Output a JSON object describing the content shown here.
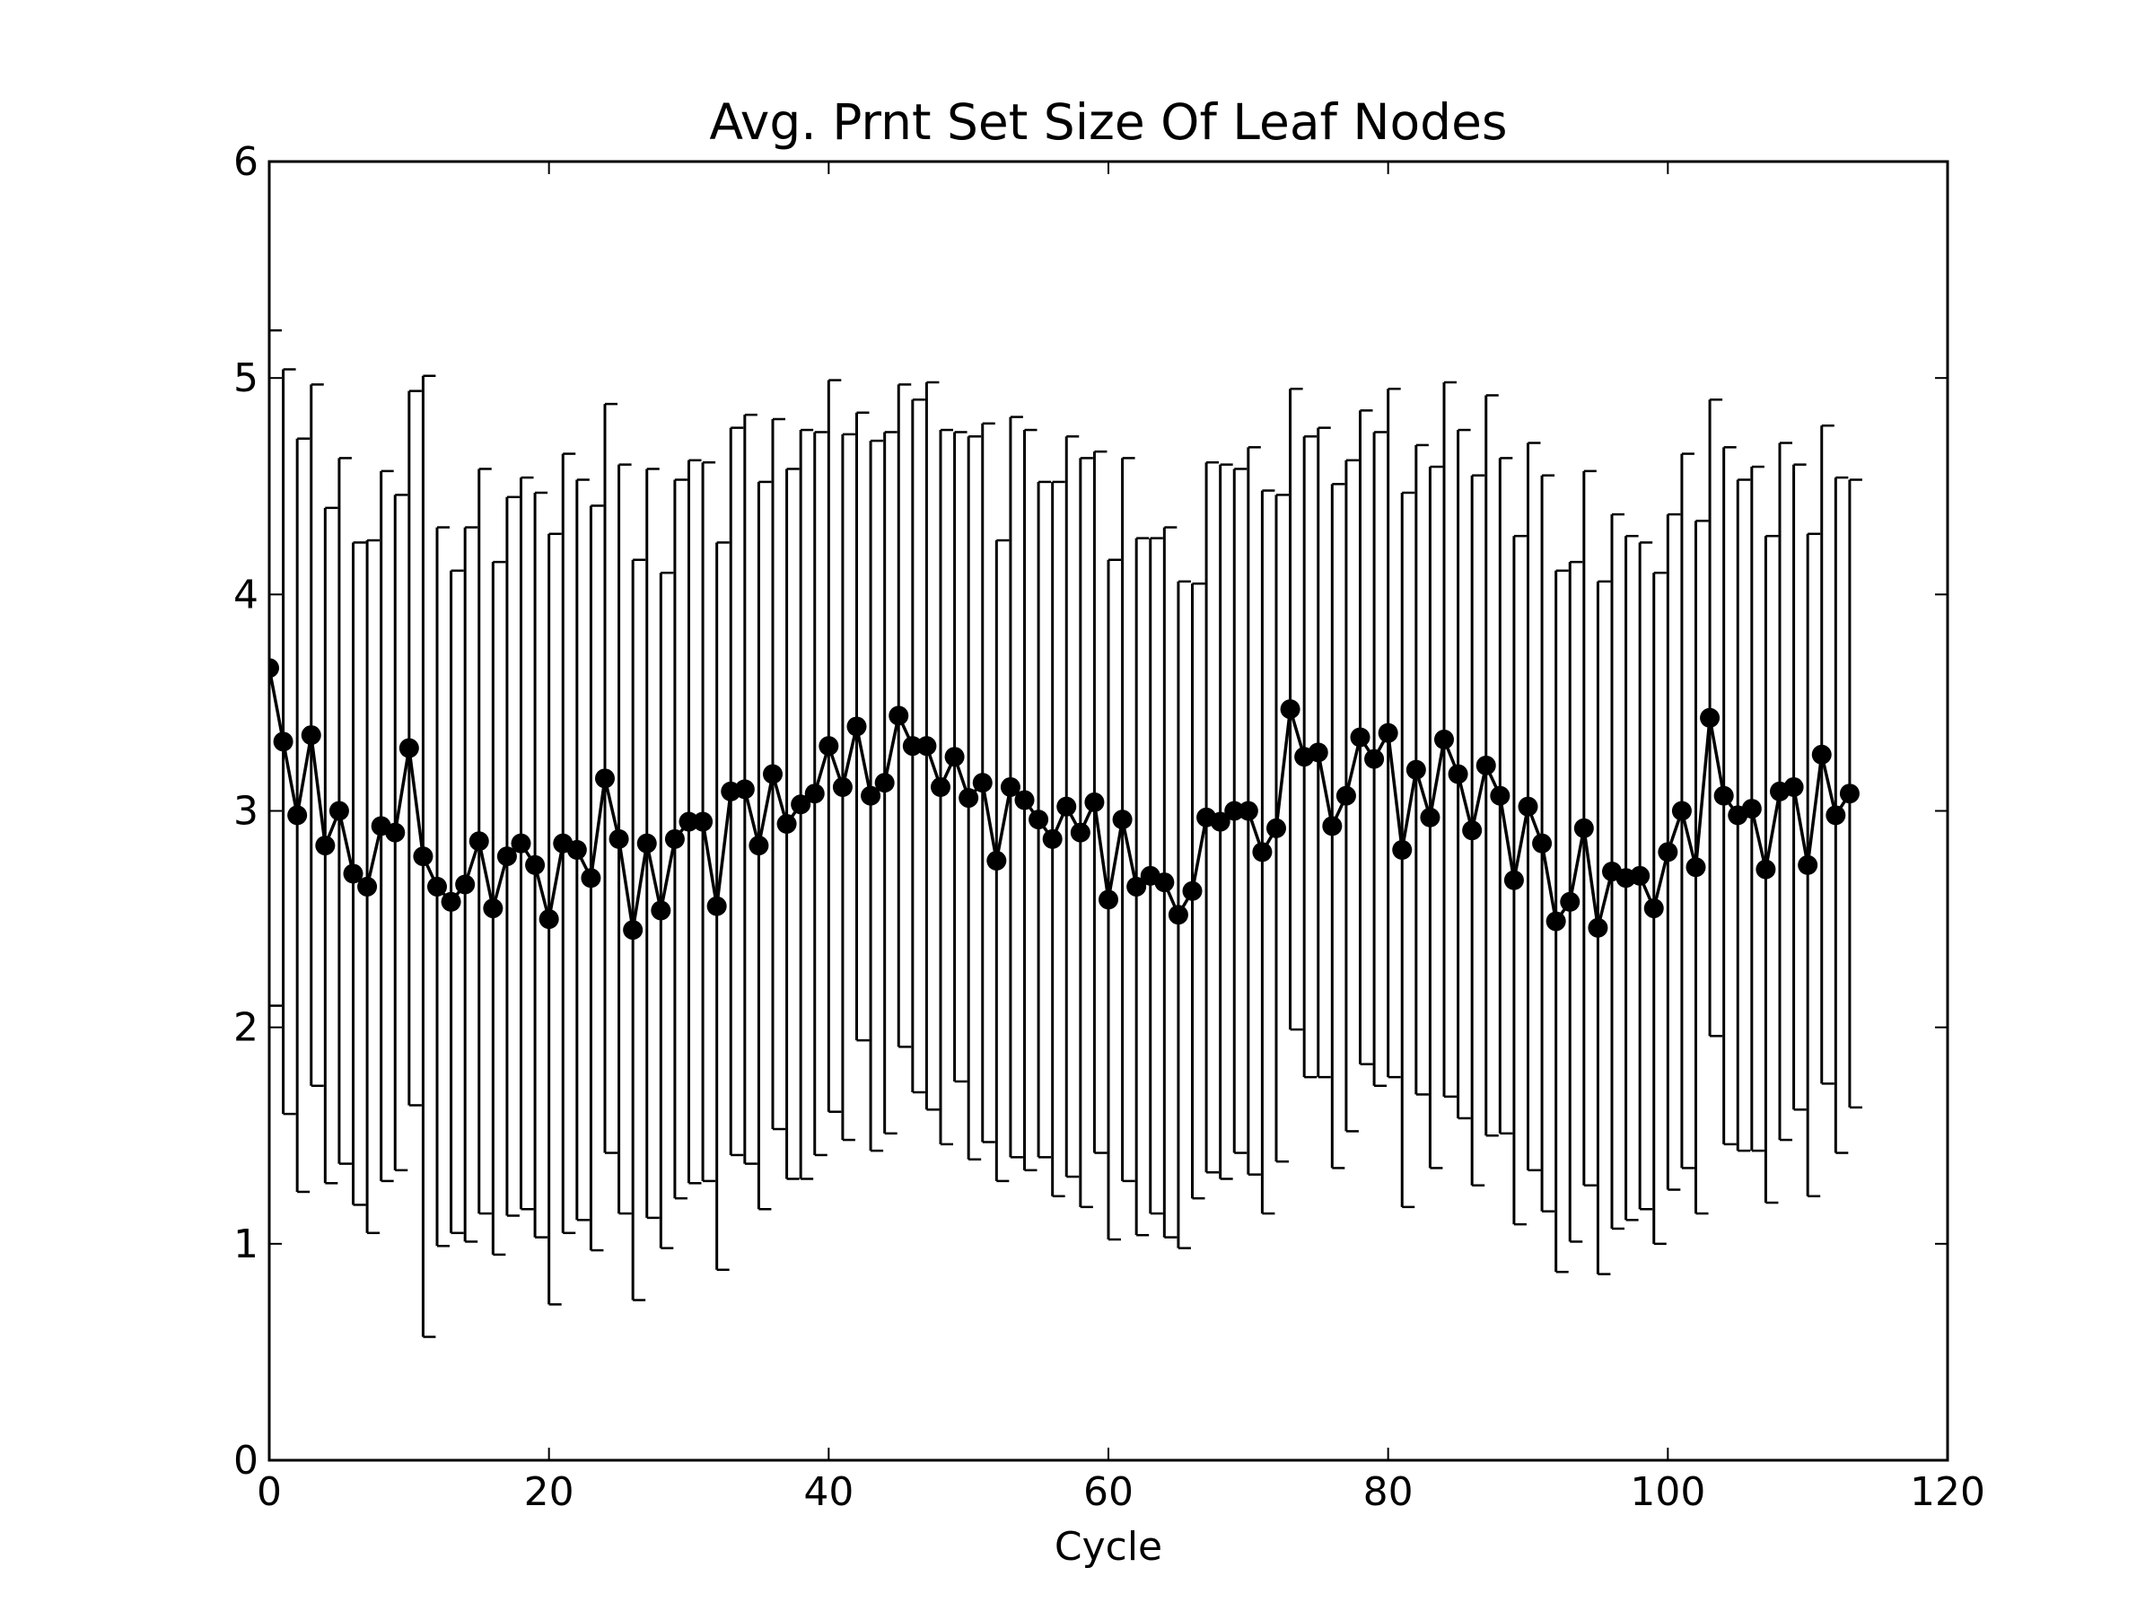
{
  "chart_data": {
    "type": "line",
    "title": "Avg. Prnt Set Size Of Leaf Nodes",
    "xlabel": "Cycle",
    "ylabel": "",
    "xlim": [
      0,
      120
    ],
    "ylim": [
      0,
      6
    ],
    "xticks": [
      0,
      20,
      40,
      60,
      80,
      100,
      120
    ],
    "yticks": [
      0,
      1,
      2,
      3,
      4,
      5,
      6
    ],
    "xtick_labels": [
      "0",
      "20",
      "40",
      "60",
      "80",
      "100",
      "120"
    ],
    "ytick_labels": [
      "0",
      "1",
      "2",
      "3",
      "4",
      "5",
      "6"
    ],
    "grid": false,
    "legend": "none",
    "line_color": "#000000",
    "marker": "filled-circle",
    "error_bars": true,
    "series": [
      {
        "x": [
          0,
          1,
          2,
          3,
          4,
          5,
          6,
          7,
          8,
          9,
          10,
          11,
          12,
          13,
          14,
          15,
          16,
          17,
          18,
          19,
          20,
          21,
          22,
          23,
          24,
          25,
          26,
          27,
          28,
          29,
          30,
          31,
          32,
          33,
          34,
          35,
          36,
          37,
          38,
          39,
          40,
          41,
          42,
          43,
          44,
          45,
          46,
          47,
          48,
          49,
          50,
          51,
          52,
          53,
          54,
          55,
          56,
          57,
          58,
          59,
          60,
          61,
          62,
          63,
          64,
          65,
          66,
          67,
          68,
          69,
          70,
          71,
          72,
          73,
          74,
          75,
          76,
          77,
          78,
          79,
          80,
          81,
          82,
          83,
          84,
          85,
          86,
          87,
          88,
          89,
          90,
          91,
          92,
          93,
          94,
          95,
          96,
          97,
          98,
          99,
          100,
          101,
          102,
          103,
          104,
          105,
          106,
          107,
          108,
          109,
          110,
          111,
          112,
          113
        ],
        "y": [
          3.66,
          3.32,
          2.98,
          3.35,
          2.84,
          3.0,
          2.71,
          2.65,
          2.93,
          2.9,
          3.29,
          2.79,
          2.65,
          2.58,
          2.66,
          2.86,
          2.55,
          2.79,
          2.85,
          2.75,
          2.5,
          2.85,
          2.82,
          2.69,
          3.15,
          2.87,
          2.45,
          2.85,
          2.54,
          2.87,
          2.95,
          2.95,
          2.56,
          3.09,
          3.1,
          2.84,
          3.17,
          2.94,
          3.03,
          3.08,
          3.3,
          3.11,
          3.39,
          3.07,
          3.13,
          3.44,
          3.3,
          3.3,
          3.11,
          3.25,
          3.06,
          3.13,
          2.77,
          3.11,
          3.05,
          2.96,
          2.87,
          3.02,
          2.9,
          3.04,
          2.59,
          2.96,
          2.65,
          2.7,
          2.67,
          2.52,
          2.63,
          2.97,
          2.95,
          3.0,
          3.0,
          2.81,
          2.92,
          3.47,
          3.25,
          3.27,
          2.93,
          3.07,
          3.34,
          3.24,
          3.36,
          2.82,
          3.19,
          2.97,
          3.33,
          3.17,
          2.91,
          3.21,
          3.07,
          2.68,
          3.02,
          2.85,
          2.49,
          2.58,
          2.92,
          2.46,
          2.72,
          2.69,
          2.7,
          2.55,
          2.81,
          3.0,
          2.74,
          3.43,
          3.07,
          2.98,
          3.01,
          2.73,
          3.09,
          3.11,
          2.75,
          3.26,
          2.98,
          3.08
        ],
        "err": [
          1.56,
          1.72,
          1.74,
          1.62,
          1.56,
          1.63,
          1.53,
          1.6,
          1.64,
          1.56,
          1.65,
          2.22,
          1.66,
          1.53,
          1.65,
          1.72,
          1.6,
          1.66,
          1.69,
          1.72,
          1.78,
          1.8,
          1.71,
          1.72,
          1.73,
          1.73,
          1.71,
          1.73,
          1.56,
          1.66,
          1.67,
          1.66,
          1.68,
          1.68,
          1.73,
          1.68,
          1.64,
          1.64,
          1.73,
          1.67,
          1.69,
          1.63,
          1.45,
          1.64,
          1.62,
          1.53,
          1.6,
          1.68,
          1.65,
          1.5,
          1.67,
          1.66,
          1.48,
          1.71,
          1.71,
          1.56,
          1.65,
          1.71,
          1.73,
          1.62,
          1.57,
          1.67,
          1.61,
          1.56,
          1.64,
          1.54,
          1.42,
          1.64,
          1.65,
          1.58,
          1.68,
          1.67,
          1.54,
          1.48,
          1.48,
          1.5,
          1.58,
          1.55,
          1.51,
          1.51,
          1.59,
          1.65,
          1.5,
          1.62,
          1.65,
          1.59,
          1.64,
          1.71,
          1.56,
          1.59,
          1.68,
          1.7,
          1.62,
          1.57,
          1.65,
          1.6,
          1.65,
          1.58,
          1.54,
          1.55,
          1.56,
          1.65,
          1.6,
          1.47,
          1.61,
          1.55,
          1.58,
          1.54,
          1.61,
          1.49,
          1.53,
          1.52,
          1.56,
          1.45
        ]
      }
    ]
  }
}
